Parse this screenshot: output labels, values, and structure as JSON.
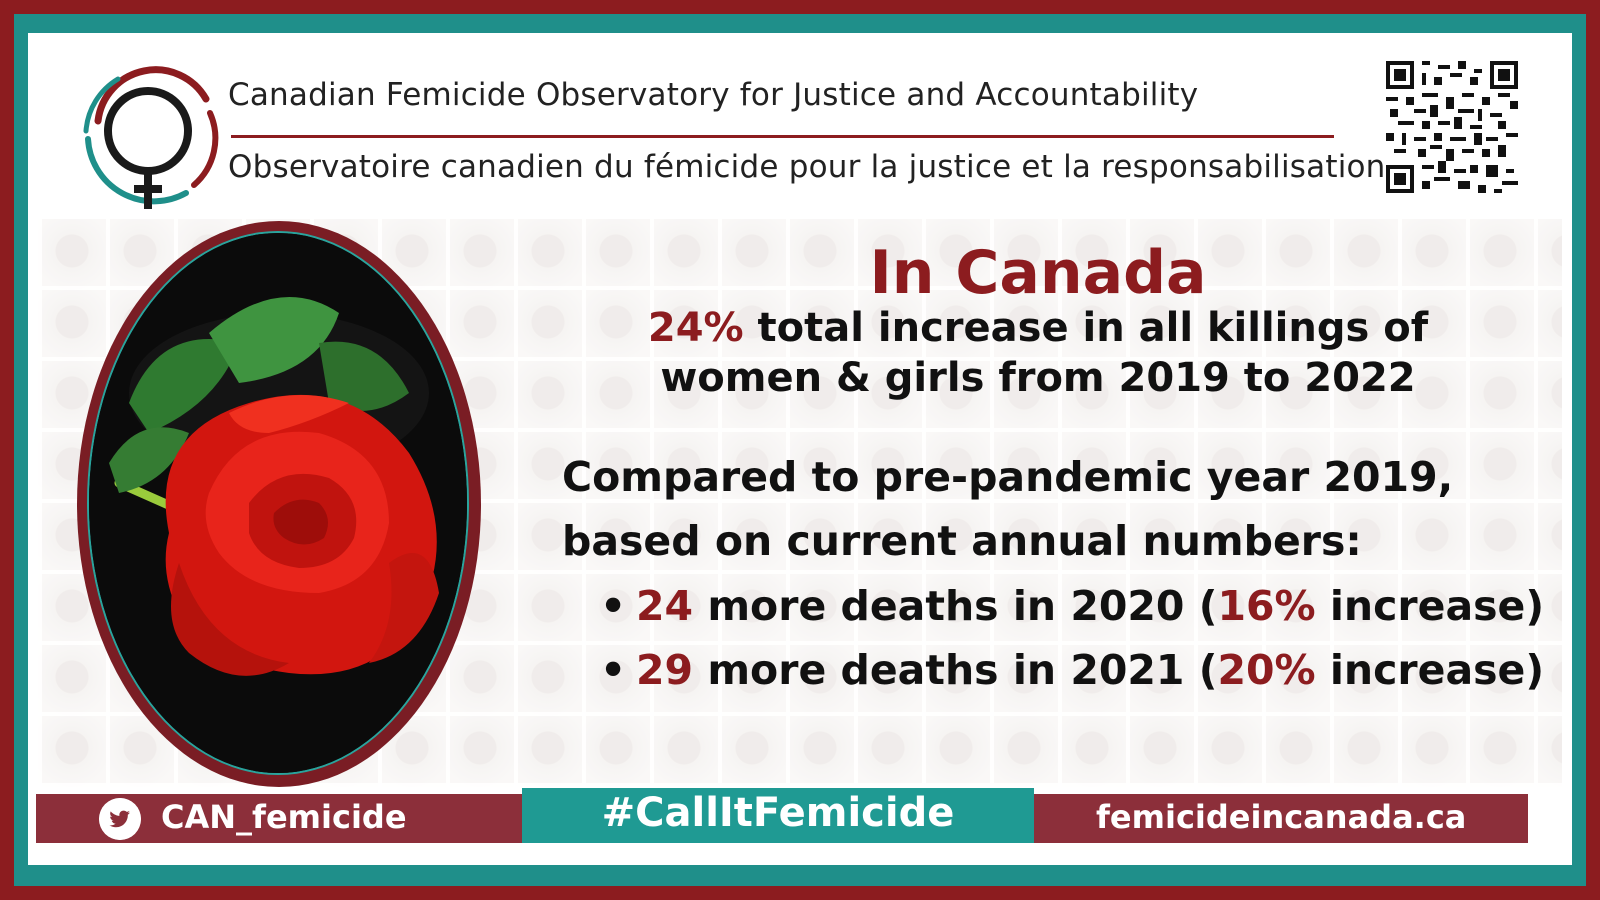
{
  "header": {
    "title_en": "Canadian Femicide Observatory for Justice and Accountability",
    "title_fr": "Observatoire canadien du fémicide pour la justice et la responsabilisation"
  },
  "main": {
    "headline": "In Canada",
    "stat": {
      "percent": "24%",
      "line1_rest": " total increase in all killings of",
      "line2": "women & girls from 2019 to 2022"
    },
    "compare_line1": "Compared to pre-pandemic year 2019,",
    "compare_line2": "based on current annual numbers:",
    "bullets": [
      {
        "count": "24",
        "mid": " more deaths in 2020 (",
        "pct": "16%",
        "end": " increase)"
      },
      {
        "count": "29",
        "mid": " more deaths in 2021 (",
        "pct": "20%",
        "end": " increase)"
      }
    ]
  },
  "footer": {
    "twitter_handle": "CAN_femicide",
    "hashtag": "#CallItFemicide",
    "website": "femicideincanada.ca"
  },
  "colors": {
    "maroon": "#8c1c1f",
    "teal": "#1f8f8a",
    "rose_red": "#e0201c",
    "leaf_green": "#3f8a3a"
  },
  "icons": [
    "femicide-observatory-logo",
    "qr-code-icon",
    "twitter-bird-icon",
    "red-rose-image"
  ]
}
